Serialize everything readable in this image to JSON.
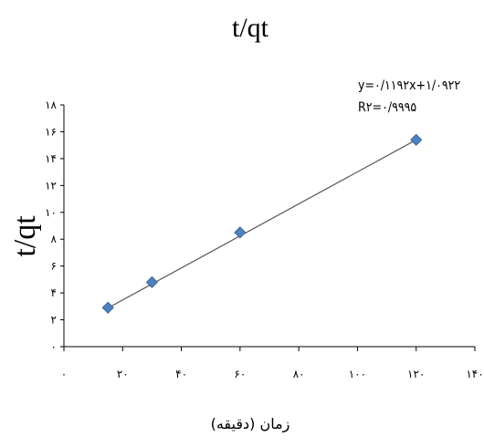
{
  "chart_data": {
    "type": "scatter",
    "title": "t/qt",
    "xlabel": "زمان (دقیقه)",
    "ylabel": "t/qt",
    "xlim": [
      0,
      140
    ],
    "ylim": [
      0,
      18
    ],
    "x_ticks": [
      0,
      20,
      40,
      60,
      80,
      100,
      120,
      140
    ],
    "y_ticks": [
      0,
      2,
      4,
      6,
      8,
      10,
      12,
      14,
      16,
      18
    ],
    "x_tick_labels": [
      "۰",
      "۲۰",
      "۴۰",
      "۶۰",
      "۸۰",
      "۱۰۰",
      "۱۲۰",
      "۱۴۰"
    ],
    "y_tick_labels": [
      "۰",
      "۲",
      "۴",
      "۶",
      "۸",
      "۱۰",
      "۱۲",
      "۱۴",
      "۱۶",
      "۱۸"
    ],
    "series": [
      {
        "x": [
          15,
          30,
          60,
          120
        ],
        "y": [
          2.9,
          4.8,
          8.5,
          15.4
        ],
        "color": "#4f81bd"
      }
    ],
    "trendline": {
      "slope": 0.1192,
      "intercept": 1.0922,
      "color": "#555555"
    },
    "annotations": {
      "equation": "y=۰/۱۱۹۲x+۱/۰۹۲۲",
      "r_squared": "R۲=۰/۹۹۹۵"
    },
    "grid": false,
    "legend": "none"
  }
}
